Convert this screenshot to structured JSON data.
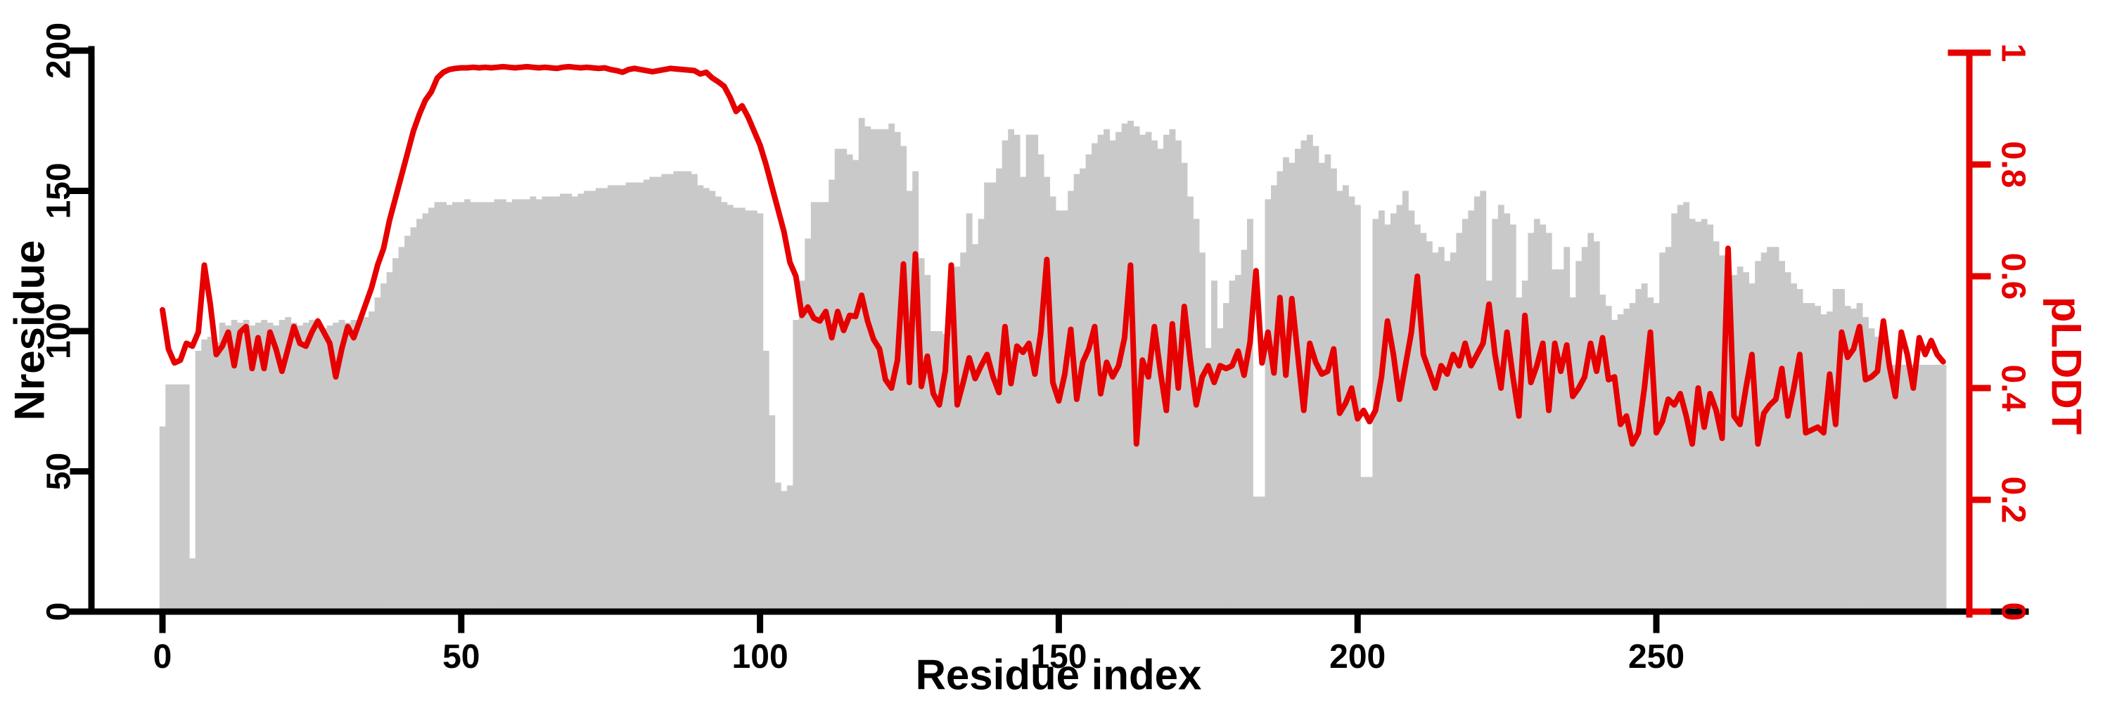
{
  "figure": {
    "background": "#ffffff"
  },
  "chart_data": {
    "type": "bar",
    "subtype": "bar-histogram with overlaid line, dual y-axes",
    "title": "",
    "xlabel": "Residue index",
    "x_start": 0,
    "x_step": 1,
    "x_ticks": [
      "0",
      "50",
      "100",
      "150",
      "200",
      "250"
    ],
    "xlim": [
      -12,
      314
    ],
    "grid": false,
    "legend": "none",
    "left_axis": {
      "label": "Nresidue",
      "ticks": [
        "0",
        "50",
        "100",
        "150",
        "200"
      ],
      "lim": [
        0,
        200
      ],
      "color": "#000000"
    },
    "right_axis": {
      "label": "pLDDT",
      "ticks": [
        "0",
        "0.2",
        "0.4",
        "0.6",
        "0.8",
        "1"
      ],
      "lim": [
        0,
        1
      ],
      "color": "#e60000"
    },
    "series": [
      {
        "name": "Nresidue",
        "type": "bar",
        "axis": "left",
        "color": "#c9c9c9",
        "values": [
          66,
          81,
          81,
          81,
          81,
          19,
          93,
          97,
          98,
          96,
          103,
          102,
          104,
          103,
          104,
          102,
          103,
          104,
          103,
          102,
          104,
          105,
          103,
          102,
          103,
          104,
          102,
          101,
          102,
          103,
          104,
          103,
          104,
          104,
          105,
          107,
          112,
          117,
          121,
          126,
          130,
          134,
          137,
          140,
          142,
          144,
          146,
          146,
          145,
          146,
          146,
          147,
          146,
          146,
          146,
          146,
          147,
          147,
          146,
          147,
          147,
          147,
          148,
          147,
          148,
          148,
          148,
          149,
          149,
          148,
          149,
          150,
          150,
          151,
          151,
          152,
          152,
          152,
          153,
          153,
          153,
          154,
          155,
          155,
          156,
          156,
          157,
          157,
          157,
          156,
          152,
          151,
          150,
          148,
          146,
          145,
          144,
          144,
          143,
          143,
          142,
          93,
          70,
          46,
          43,
          45,
          104,
          118,
          133,
          146,
          146,
          146,
          154,
          165,
          165,
          163,
          161,
          176,
          173,
          172,
          172,
          172,
          174,
          171,
          166,
          150,
          157,
          126,
          120,
          100,
          100,
          99,
          105,
          123,
          128,
          142,
          131,
          140,
          153,
          153,
          158,
          168,
          172,
          170,
          155,
          170,
          170,
          163,
          155,
          148,
          143,
          143,
          150,
          156,
          158,
          163,
          167,
          170,
          172,
          168,
          171,
          174,
          175,
          173,
          170,
          171,
          168,
          165,
          170,
          172,
          168,
          160,
          148,
          140,
          128,
          94,
          118,
          101,
          110,
          118,
          120,
          129,
          140,
          41,
          41,
          147,
          152,
          157,
          162,
          160,
          165,
          168,
          170,
          166,
          160,
          163,
          158,
          150,
          152,
          148,
          145,
          48,
          48,
          140,
          143,
          138,
          142,
          145,
          150,
          143,
          138,
          135,
          132,
          128,
          130,
          125,
          128,
          135,
          140,
          143,
          148,
          150,
          118,
          140,
          145,
          142,
          138,
          112,
          118,
          135,
          140,
          138,
          135,
          122,
          122,
          130,
          112,
          125,
          130,
          135,
          132,
          113,
          109,
          104,
          106,
          108,
          110,
          115,
          117,
          112,
          110,
          128,
          130,
          142,
          145,
          146,
          140,
          139,
          140,
          138,
          132,
          127,
          116,
          120,
          123,
          121,
          117,
          125,
          128,
          130,
          130,
          125,
          121,
          117,
          115,
          110,
          110,
          109,
          106,
          107,
          115,
          115,
          109,
          108,
          110,
          105,
          101,
          98,
          95,
          88,
          88,
          88,
          88,
          88,
          88,
          88,
          88,
          88,
          88
        ]
      },
      {
        "name": "pLDDT",
        "type": "line",
        "axis": "right",
        "color": "#e60000",
        "values": [
          0.54,
          0.47,
          0.445,
          0.45,
          0.48,
          0.475,
          0.5,
          0.62,
          0.55,
          0.46,
          0.475,
          0.5,
          0.44,
          0.5,
          0.51,
          0.435,
          0.49,
          0.435,
          0.5,
          0.47,
          0.43,
          0.47,
          0.51,
          0.48,
          0.475,
          0.5,
          0.52,
          0.5,
          0.48,
          0.42,
          0.47,
          0.51,
          0.49,
          0.52,
          0.55,
          0.58,
          0.62,
          0.65,
          0.7,
          0.74,
          0.78,
          0.82,
          0.86,
          0.89,
          0.915,
          0.93,
          0.955,
          0.965,
          0.97,
          0.972,
          0.973,
          0.973,
          0.974,
          0.973,
          0.974,
          0.973,
          0.974,
          0.975,
          0.974,
          0.973,
          0.974,
          0.975,
          0.974,
          0.973,
          0.974,
          0.973,
          0.972,
          0.974,
          0.975,
          0.974,
          0.973,
          0.974,
          0.973,
          0.972,
          0.973,
          0.97,
          0.968,
          0.965,
          0.97,
          0.972,
          0.97,
          0.968,
          0.966,
          0.968,
          0.97,
          0.972,
          0.971,
          0.97,
          0.969,
          0.968,
          0.962,
          0.965,
          0.955,
          0.948,
          0.94,
          0.92,
          0.895,
          0.905,
          0.885,
          0.86,
          0.835,
          0.8,
          0.76,
          0.72,
          0.68,
          0.625,
          0.6,
          0.53,
          0.545,
          0.525,
          0.52,
          0.537,
          0.49,
          0.537,
          0.503,
          0.53,
          0.528,
          0.566,
          0.52,
          0.487,
          0.47,
          0.415,
          0.4,
          0.45,
          0.622,
          0.41,
          0.64,
          0.403,
          0.457,
          0.39,
          0.37,
          0.43,
          0.62,
          0.37,
          0.41,
          0.454,
          0.417,
          0.44,
          0.46,
          0.42,
          0.392,
          0.51,
          0.408,
          0.475,
          0.464,
          0.48,
          0.425,
          0.5,
          0.63,
          0.41,
          0.377,
          0.425,
          0.505,
          0.38,
          0.446,
          0.47,
          0.51,
          0.39,
          0.446,
          0.42,
          0.44,
          0.49,
          0.62,
          0.3,
          0.45,
          0.42,
          0.51,
          0.43,
          0.36,
          0.515,
          0.4,
          0.546,
          0.45,
          0.37,
          0.42,
          0.44,
          0.41,
          0.44,
          0.435,
          0.44,
          0.466,
          0.423,
          0.482,
          0.61,
          0.445,
          0.5,
          0.427,
          0.562,
          0.423,
          0.56,
          0.46,
          0.36,
          0.48,
          0.446,
          0.425,
          0.43,
          0.47,
          0.355,
          0.373,
          0.4,
          0.345,
          0.36,
          0.34,
          0.36,
          0.42,
          0.52,
          0.46,
          0.38,
          0.44,
          0.5,
          0.6,
          0.46,
          0.43,
          0.4,
          0.44,
          0.425,
          0.46,
          0.44,
          0.48,
          0.44,
          0.46,
          0.48,
          0.55,
          0.46,
          0.4,
          0.5,
          0.42,
          0.35,
          0.53,
          0.41,
          0.44,
          0.48,
          0.36,
          0.48,
          0.43,
          0.477,
          0.385,
          0.4,
          0.42,
          0.48,
          0.43,
          0.49,
          0.415,
          0.42,
          0.335,
          0.35,
          0.3,
          0.32,
          0.4,
          0.5,
          0.32,
          0.34,
          0.38,
          0.37,
          0.39,
          0.35,
          0.3,
          0.4,
          0.33,
          0.39,
          0.36,
          0.31,
          0.65,
          0.35,
          0.335,
          0.4,
          0.46,
          0.3,
          0.355,
          0.37,
          0.38,
          0.435,
          0.35,
          0.4,
          0.46,
          0.32,
          0.325,
          0.33,
          0.32,
          0.425,
          0.335,
          0.5,
          0.455,
          0.47,
          0.51,
          0.415,
          0.42,
          0.43,
          0.52,
          0.44,
          0.385,
          0.5,
          0.46,
          0.4,
          0.49,
          0.46,
          0.485,
          0.46,
          0.447
        ]
      }
    ]
  }
}
